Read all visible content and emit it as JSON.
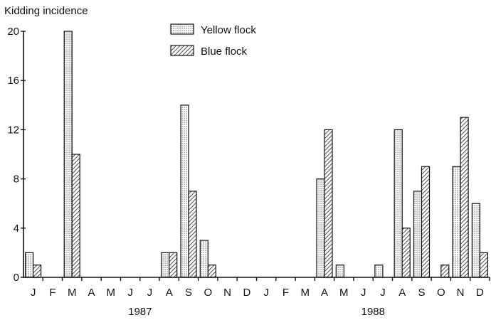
{
  "chart_data": {
    "type": "bar",
    "title": "",
    "ylabel": "Kidding incidence",
    "xlabel": "",
    "ylim": [
      0,
      20
    ],
    "yticks": [
      0,
      4,
      8,
      12,
      16,
      20
    ],
    "grid": false,
    "legend_position": "top-center",
    "categories": [
      "J",
      "F",
      "M",
      "A",
      "M",
      "J",
      "J",
      "A",
      "S",
      "O",
      "N",
      "D",
      "J",
      "F",
      "M",
      "A",
      "M",
      "J",
      "J",
      "A",
      "S",
      "O",
      "N",
      "D"
    ],
    "year_labels": [
      {
        "label": "1987",
        "months": [
          0,
          11
        ]
      },
      {
        "label": "1988",
        "months": [
          12,
          23
        ]
      }
    ],
    "series": [
      {
        "name": "Yellow flock",
        "pattern": "dotted",
        "values": [
          2,
          0,
          20,
          0,
          0,
          0,
          0,
          2,
          14,
          3,
          0,
          0,
          0,
          0,
          0,
          8,
          1,
          0,
          1,
          12,
          7,
          0,
          9,
          6
        ]
      },
      {
        "name": "Blue flock",
        "pattern": "hatched",
        "values": [
          1,
          0,
          10,
          0,
          0,
          0,
          0,
          2,
          7,
          1,
          0,
          0,
          0,
          0,
          0,
          12,
          0,
          0,
          0,
          4,
          9,
          1,
          13,
          2
        ]
      }
    ]
  }
}
